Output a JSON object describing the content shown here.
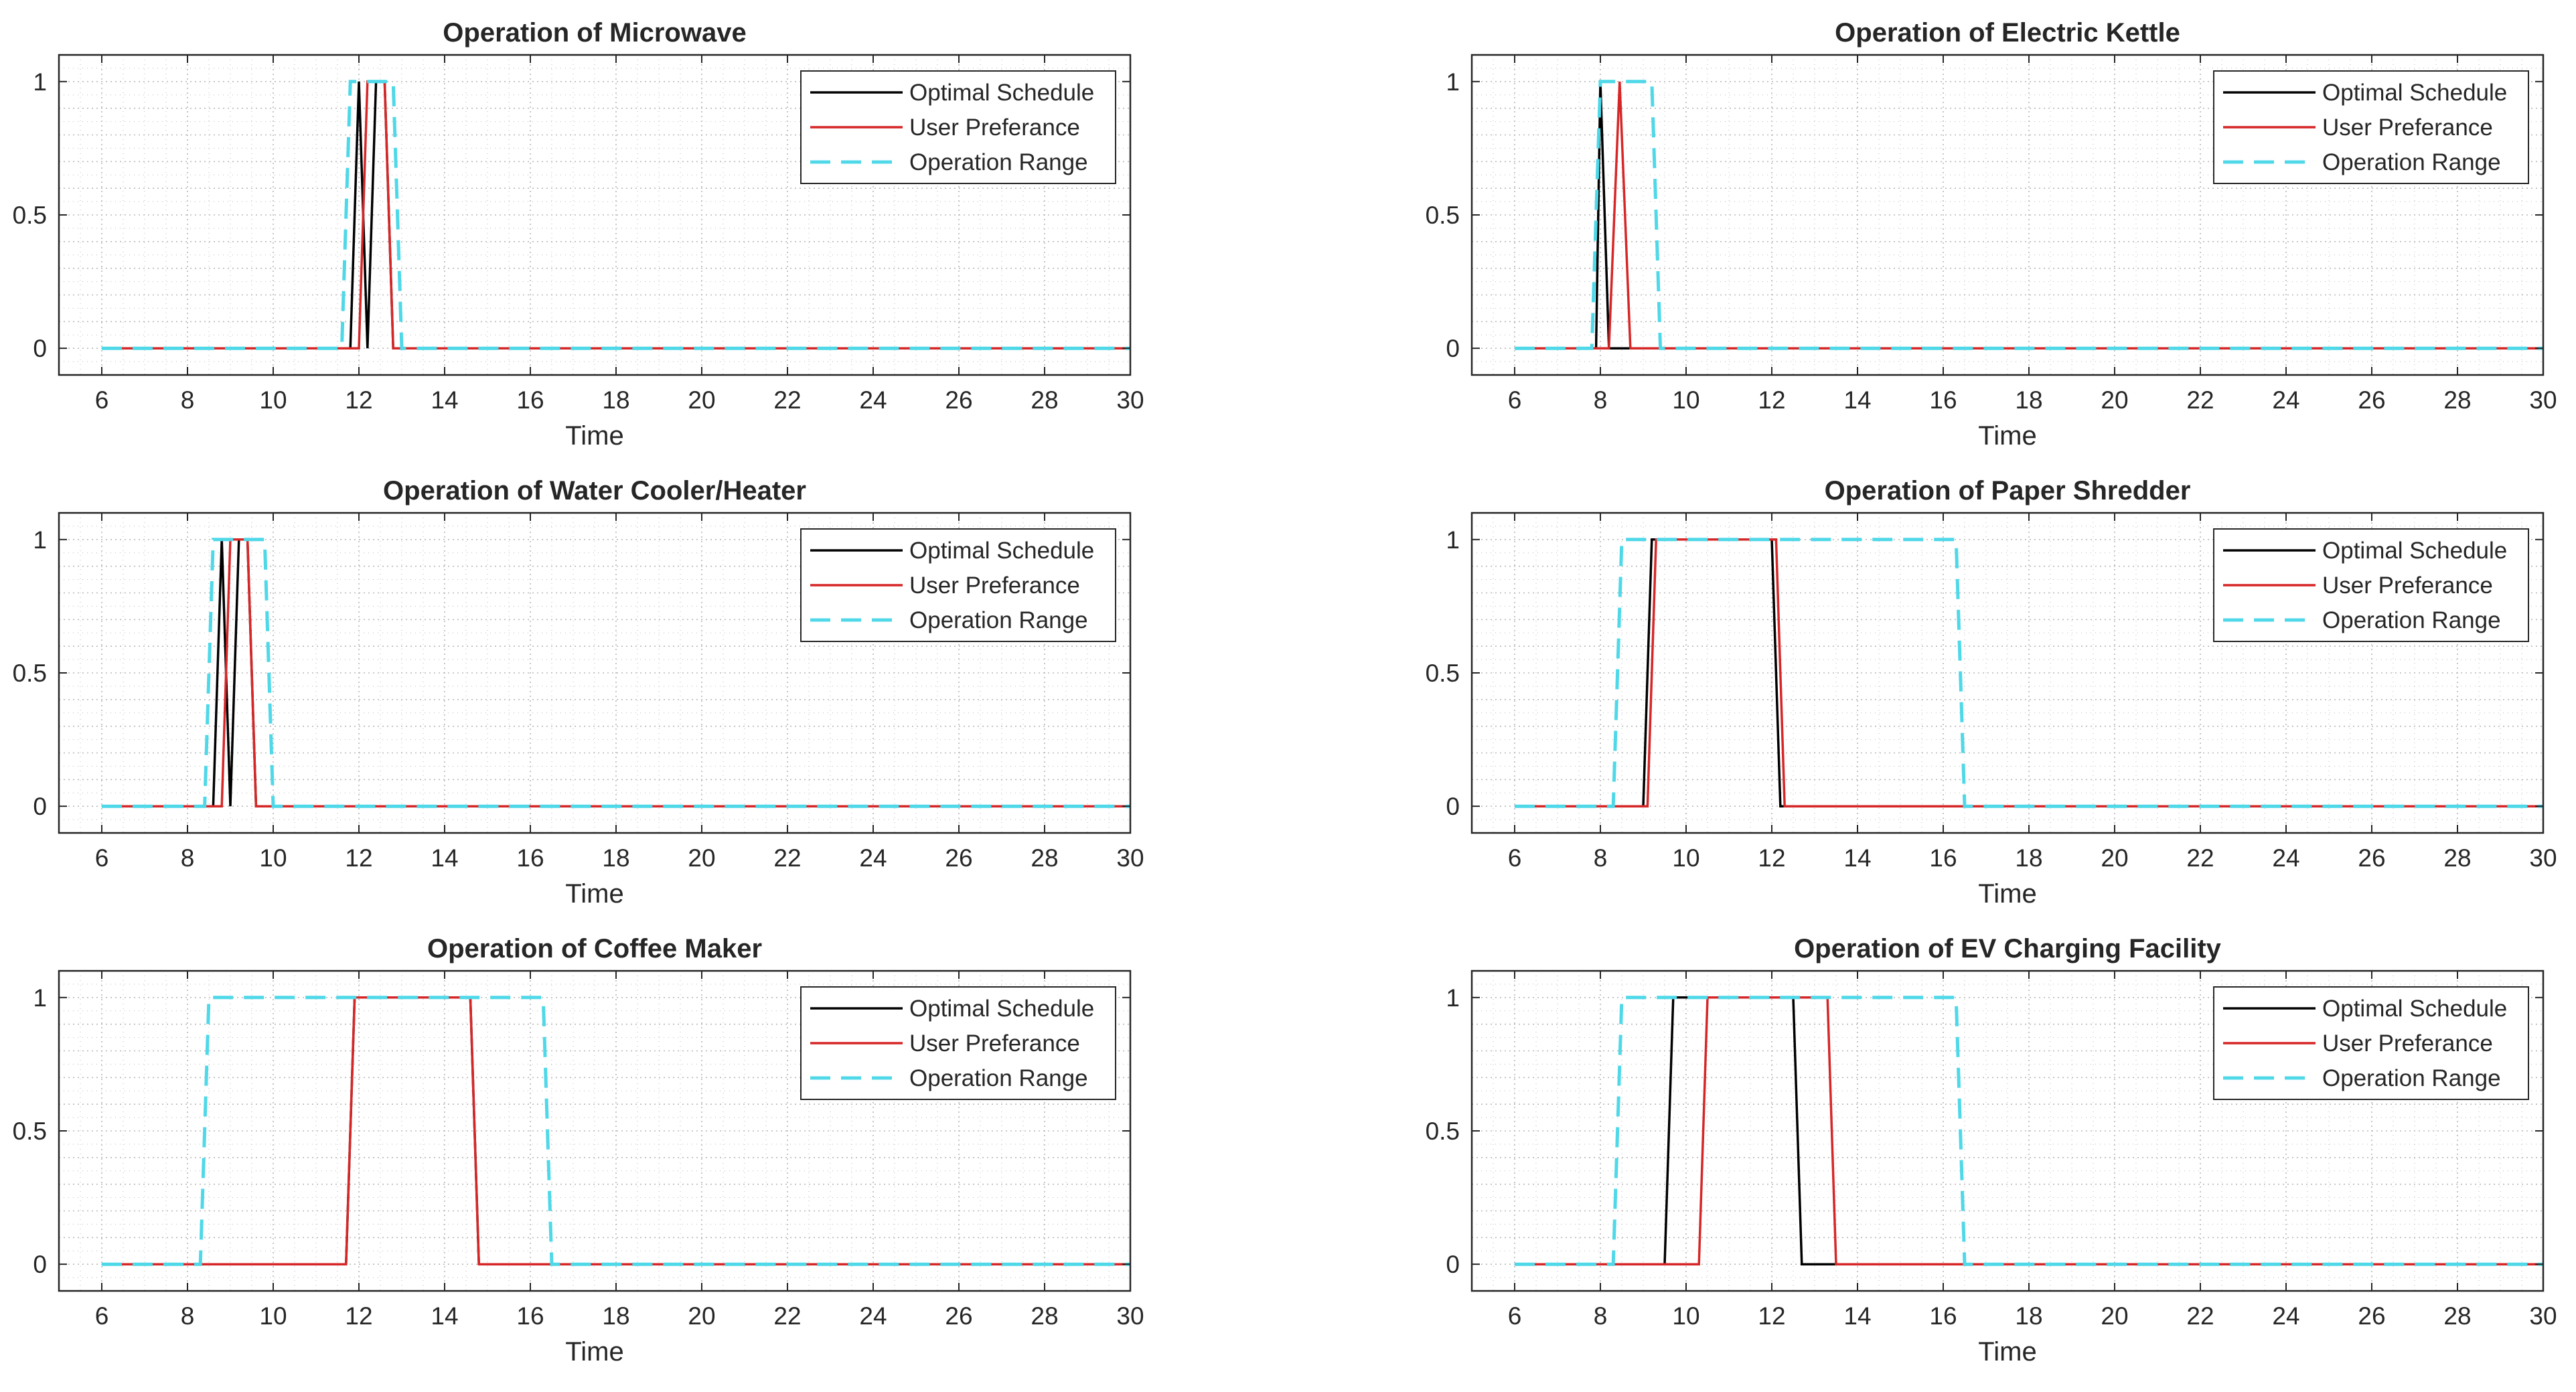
{
  "colors": {
    "optimal": "#000000",
    "preference": "#d62728",
    "range": "#4fd8e8",
    "axes": "#262626",
    "grid": "#b8b8b8"
  },
  "chart_data": [
    {
      "type": "line",
      "title": "Operation of Microwave",
      "xlabel": "Time",
      "ylabel": "",
      "xlim": [
        5,
        30
      ],
      "ylim": [
        -0.1,
        1.1
      ],
      "xticks": [
        6,
        8,
        10,
        12,
        14,
        16,
        18,
        20,
        22,
        24,
        26,
        28,
        30
      ],
      "yticks": [
        0,
        0.5,
        1
      ],
      "grid": true,
      "legend_position": "top-right",
      "series": [
        {
          "name": "Optimal Schedule",
          "style": "solid",
          "x": [
            6,
            11.8,
            12.0,
            12.2,
            12.4,
            12.6,
            12.8,
            30
          ],
          "y": [
            0,
            0,
            1,
            0,
            1,
            1,
            0,
            0
          ]
        },
        {
          "name": "User Preferance",
          "style": "solid",
          "x": [
            6,
            12.0,
            12.2,
            12.4,
            12.6,
            12.8,
            30
          ],
          "y": [
            0,
            0,
            1,
            1,
            1,
            0,
            0
          ]
        },
        {
          "name": "Operation Range",
          "style": "dashed",
          "x": [
            6,
            11.6,
            11.8,
            12.8,
            13.0,
            30
          ],
          "y": [
            0,
            0,
            1,
            1,
            0,
            0
          ]
        }
      ]
    },
    {
      "type": "line",
      "title": "Operation of Electric Kettle",
      "xlabel": "Time",
      "ylabel": "",
      "xlim": [
        5,
        30
      ],
      "ylim": [
        -0.1,
        1.1
      ],
      "xticks": [
        6,
        8,
        10,
        12,
        14,
        16,
        18,
        20,
        22,
        24,
        26,
        28,
        30
      ],
      "yticks": [
        0,
        0.5,
        1
      ],
      "grid": true,
      "legend_position": "top-right",
      "series": [
        {
          "name": "Optimal Schedule",
          "style": "solid",
          "x": [
            6,
            7.9,
            8.0,
            8.2,
            30
          ],
          "y": [
            0,
            0,
            1,
            0,
            0
          ]
        },
        {
          "name": "User Preferance",
          "style": "solid",
          "x": [
            6,
            8.2,
            8.45,
            8.7,
            30
          ],
          "y": [
            0,
            0,
            1,
            0,
            0
          ]
        },
        {
          "name": "Operation Range",
          "style": "dashed",
          "x": [
            6,
            7.8,
            8.0,
            9.2,
            9.4,
            30
          ],
          "y": [
            0,
            0,
            1,
            1,
            0,
            0
          ]
        }
      ]
    },
    {
      "type": "line",
      "title": "Operation of Water Cooler/Heater",
      "xlabel": "Time",
      "ylabel": "",
      "xlim": [
        5,
        30
      ],
      "ylim": [
        -0.1,
        1.1
      ],
      "xticks": [
        6,
        8,
        10,
        12,
        14,
        16,
        18,
        20,
        22,
        24,
        26,
        28,
        30
      ],
      "yticks": [
        0,
        0.5,
        1
      ],
      "grid": true,
      "legend_position": "top-right",
      "series": [
        {
          "name": "Optimal Schedule",
          "style": "solid",
          "x": [
            6,
            8.6,
            8.8,
            9.0,
            9.2,
            9.4,
            9.6,
            30
          ],
          "y": [
            0,
            0,
            1,
            0,
            1,
            1,
            0,
            0
          ]
        },
        {
          "name": "User Preferance",
          "style": "solid",
          "x": [
            6,
            8.8,
            9.0,
            9.2,
            9.4,
            9.6,
            30
          ],
          "y": [
            0,
            0,
            1,
            1,
            1,
            0,
            0
          ]
        },
        {
          "name": "Operation Range",
          "style": "dashed",
          "x": [
            6,
            8.4,
            8.6,
            9.8,
            10.0,
            30
          ],
          "y": [
            0,
            0,
            1,
            1,
            0,
            0
          ]
        }
      ]
    },
    {
      "type": "line",
      "title": "Operation of Paper Shredder",
      "xlabel": "Time",
      "ylabel": "",
      "xlim": [
        5,
        30
      ],
      "ylim": [
        -0.1,
        1.1
      ],
      "xticks": [
        6,
        8,
        10,
        12,
        14,
        16,
        18,
        20,
        22,
        24,
        26,
        28,
        30
      ],
      "yticks": [
        0,
        0.5,
        1
      ],
      "grid": true,
      "legend_position": "top-right",
      "series": [
        {
          "name": "Optimal Schedule",
          "style": "solid",
          "x": [
            6,
            9.0,
            9.2,
            12.0,
            12.2,
            30
          ],
          "y": [
            0,
            0,
            1,
            1,
            0,
            0
          ]
        },
        {
          "name": "User Preferance",
          "style": "solid",
          "x": [
            6,
            9.1,
            9.3,
            12.1,
            12.3,
            30
          ],
          "y": [
            0,
            0,
            1,
            1,
            0,
            0
          ]
        },
        {
          "name": "Operation Range",
          "style": "dashed",
          "x": [
            6,
            8.3,
            8.5,
            16.3,
            16.5,
            30
          ],
          "y": [
            0,
            0,
            1,
            1,
            0,
            0
          ]
        }
      ]
    },
    {
      "type": "line",
      "title": "Operation of Coffee Maker",
      "xlabel": "Time",
      "ylabel": "",
      "xlim": [
        5,
        30
      ],
      "ylim": [
        -0.1,
        1.1
      ],
      "xticks": [
        6,
        8,
        10,
        12,
        14,
        16,
        18,
        20,
        22,
        24,
        26,
        28,
        30
      ],
      "yticks": [
        0,
        0.5,
        1
      ],
      "grid": true,
      "legend_position": "top-right",
      "series": [
        {
          "name": "Optimal Schedule",
          "style": "solid",
          "x": [
            6,
            11.7,
            11.9,
            14.6,
            14.8,
            30
          ],
          "y": [
            0,
            0,
            1,
            1,
            0,
            0
          ]
        },
        {
          "name": "User Preferance",
          "style": "solid",
          "x": [
            6,
            11.7,
            11.9,
            14.6,
            14.8,
            30
          ],
          "y": [
            0,
            0,
            1,
            1,
            0,
            0
          ]
        },
        {
          "name": "Operation Range",
          "style": "dashed",
          "x": [
            6,
            8.3,
            8.5,
            16.3,
            16.5,
            30
          ],
          "y": [
            0,
            0,
            1,
            1,
            0,
            0
          ]
        }
      ]
    },
    {
      "type": "line",
      "title": "Operation of EV Charging Facility",
      "xlabel": "Time",
      "ylabel": "",
      "xlim": [
        5,
        30
      ],
      "ylim": [
        -0.1,
        1.1
      ],
      "xticks": [
        6,
        8,
        10,
        12,
        14,
        16,
        18,
        20,
        22,
        24,
        26,
        28,
        30
      ],
      "yticks": [
        0,
        0.5,
        1
      ],
      "grid": true,
      "legend_position": "top-right",
      "series": [
        {
          "name": "Optimal Schedule",
          "style": "solid",
          "x": [
            6,
            9.5,
            9.7,
            12.5,
            12.7,
            30
          ],
          "y": [
            0,
            0,
            1,
            1,
            0,
            0
          ]
        },
        {
          "name": "User Preferance",
          "style": "solid",
          "x": [
            6,
            10.3,
            10.5,
            13.3,
            13.5,
            30
          ],
          "y": [
            0,
            0,
            1,
            1,
            0,
            0
          ]
        },
        {
          "name": "Operation Range",
          "style": "dashed",
          "x": [
            6,
            8.3,
            8.5,
            16.3,
            16.5,
            30
          ],
          "y": [
            0,
            0,
            1,
            1,
            0,
            0
          ]
        }
      ]
    }
  ]
}
